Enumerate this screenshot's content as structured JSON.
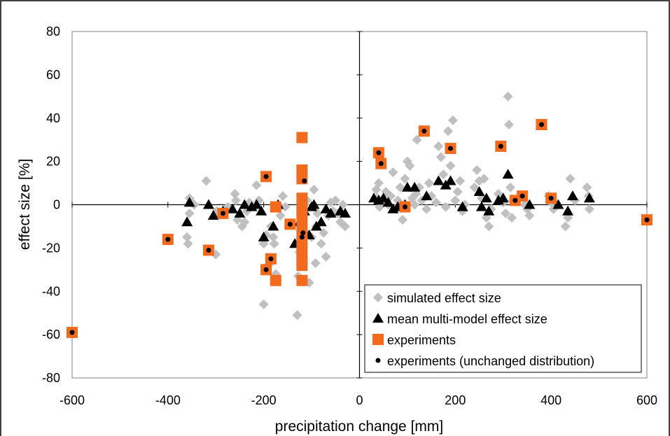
{
  "chart_data": {
    "type": "scatter",
    "xlabel": "precipitation change [mm]",
    "ylabel": "effect size [%]",
    "xlim": [
      -600,
      600
    ],
    "ylim": [
      -80,
      80
    ],
    "x_ticks": [
      -600,
      -400,
      -200,
      0,
      200,
      400,
      600
    ],
    "y_ticks": [
      -80,
      -60,
      -40,
      -20,
      0,
      20,
      40,
      60,
      80
    ],
    "grid": false,
    "legend_position": "bottom-right",
    "colors": {
      "simulated": "#c0c0c0",
      "mean": "#000000",
      "experiments": "#f26b1d",
      "unchanged": "#000000"
    },
    "series": [
      {
        "name": "simulated effect size",
        "marker": "diamond",
        "points": [
          [
            -355,
            3
          ],
          [
            -355,
            -4
          ],
          [
            -360,
            -15
          ],
          [
            -358,
            -18
          ],
          [
            -350,
            1
          ],
          [
            -345,
            0
          ],
          [
            -320,
            11
          ],
          [
            -300,
            -23
          ],
          [
            -298,
            -3
          ],
          [
            -280,
            -2
          ],
          [
            -275,
            -1
          ],
          [
            -260,
            5
          ],
          [
            -258,
            2
          ],
          [
            -255,
            -7
          ],
          [
            -245,
            -10
          ],
          [
            -240,
            -8
          ],
          [
            -235,
            -3
          ],
          [
            -230,
            1
          ],
          [
            -215,
            9
          ],
          [
            -210,
            2
          ],
          [
            -200,
            -18
          ],
          [
            -200,
            -46
          ],
          [
            -195,
            -14
          ],
          [
            -190,
            -28
          ],
          [
            -185,
            -10
          ],
          [
            -180,
            -15
          ],
          [
            -178,
            -18
          ],
          [
            -175,
            -32
          ],
          [
            -170,
            0
          ],
          [
            -165,
            -5
          ],
          [
            -160,
            4
          ],
          [
            -155,
            -1
          ],
          [
            -130,
            -51
          ],
          [
            -128,
            -33
          ],
          [
            -125,
            -22
          ],
          [
            -120,
            -12
          ],
          [
            -118,
            -5
          ],
          [
            -115,
            0
          ],
          [
            -110,
            2
          ],
          [
            -105,
            -36
          ],
          [
            -100,
            -15
          ],
          [
            -95,
            7
          ],
          [
            -92,
            -27
          ],
          [
            -90,
            -10
          ],
          [
            -88,
            -4
          ],
          [
            -80,
            -18
          ],
          [
            -75,
            -13
          ],
          [
            -70,
            -24
          ],
          [
            -65,
            -5
          ],
          [
            -60,
            1
          ],
          [
            -55,
            -3
          ],
          [
            -50,
            2
          ],
          [
            -45,
            -4
          ],
          [
            -40,
            -8
          ],
          [
            -35,
            0
          ],
          [
            -30,
            -10
          ],
          [
            35,
            7
          ],
          [
            38,
            3
          ],
          [
            40,
            10
          ],
          [
            42,
            -1
          ],
          [
            45,
            2
          ],
          [
            50,
            1
          ],
          [
            55,
            6
          ],
          [
            60,
            0
          ],
          [
            65,
            4
          ],
          [
            70,
            15
          ],
          [
            75,
            -2
          ],
          [
            80,
            2
          ],
          [
            85,
            8
          ],
          [
            90,
            -7
          ],
          [
            95,
            12
          ],
          [
            100,
            20
          ],
          [
            105,
            18
          ],
          [
            110,
            3
          ],
          [
            115,
            0
          ],
          [
            118,
            5
          ],
          [
            120,
            30
          ],
          [
            125,
            8
          ],
          [
            130,
            2
          ],
          [
            140,
            -2
          ],
          [
            145,
            10
          ],
          [
            150,
            4
          ],
          [
            160,
            1
          ],
          [
            165,
            27
          ],
          [
            170,
            22
          ],
          [
            175,
            14
          ],
          [
            180,
            -1
          ],
          [
            185,
            34
          ],
          [
            190,
            18
          ],
          [
            195,
            39
          ],
          [
            200,
            2
          ],
          [
            205,
            6
          ],
          [
            210,
            11
          ],
          [
            215,
            -3
          ],
          [
            220,
            0
          ],
          [
            240,
            8
          ],
          [
            245,
            16
          ],
          [
            250,
            11
          ],
          [
            255,
            3
          ],
          [
            260,
            12
          ],
          [
            265,
            -6
          ],
          [
            270,
            -10
          ],
          [
            275,
            -2
          ],
          [
            290,
            5
          ],
          [
            295,
            3
          ],
          [
            300,
            1
          ],
          [
            305,
            -4
          ],
          [
            310,
            50
          ],
          [
            312,
            37
          ],
          [
            315,
            8
          ],
          [
            318,
            -6
          ],
          [
            320,
            2
          ],
          [
            340,
            4
          ],
          [
            345,
            0
          ],
          [
            350,
            -2
          ],
          [
            355,
            -5
          ],
          [
            395,
            4
          ],
          [
            400,
            1
          ],
          [
            405,
            -2
          ],
          [
            430,
            -10
          ],
          [
            435,
            -6
          ],
          [
            440,
            12
          ],
          [
            445,
            3
          ],
          [
            450,
            2
          ],
          [
            475,
            8
          ],
          [
            478,
            4
          ],
          [
            480,
            -2
          ]
        ]
      },
      {
        "name": "mean multi-model effect size",
        "marker": "triangle",
        "points": [
          [
            -355,
            1
          ],
          [
            -360,
            -8
          ],
          [
            -315,
            0
          ],
          [
            -305,
            -5
          ],
          [
            -285,
            -3
          ],
          [
            -265,
            -2
          ],
          [
            -250,
            -4
          ],
          [
            -240,
            0
          ],
          [
            -225,
            -1
          ],
          [
            -215,
            0
          ],
          [
            -205,
            -3
          ],
          [
            -200,
            -15
          ],
          [
            -180,
            -10
          ],
          [
            -170,
            0
          ],
          [
            -135,
            -18
          ],
          [
            -125,
            -8
          ],
          [
            -115,
            -3
          ],
          [
            -105,
            -14
          ],
          [
            -100,
            -1
          ],
          [
            -95,
            0
          ],
          [
            -90,
            -10
          ],
          [
            -80,
            -8
          ],
          [
            -70,
            -2
          ],
          [
            -60,
            -4
          ],
          [
            -40,
            -3
          ],
          [
            -30,
            -4
          ],
          [
            30,
            3
          ],
          [
            40,
            2
          ],
          [
            50,
            3
          ],
          [
            60,
            1
          ],
          [
            70,
            -2
          ],
          [
            80,
            -1
          ],
          [
            95,
            0
          ],
          [
            100,
            8
          ],
          [
            115,
            8
          ],
          [
            140,
            4
          ],
          [
            165,
            11
          ],
          [
            180,
            9
          ],
          [
            190,
            11
          ],
          [
            215,
            -1
          ],
          [
            250,
            6
          ],
          [
            255,
            -1
          ],
          [
            265,
            3
          ],
          [
            270,
            -3
          ],
          [
            290,
            2
          ],
          [
            300,
            3
          ],
          [
            310,
            14
          ],
          [
            325,
            2
          ],
          [
            355,
            0
          ],
          [
            415,
            0
          ],
          [
            435,
            -3
          ],
          [
            445,
            4
          ],
          [
            480,
            3
          ]
        ]
      },
      {
        "name": "experiments",
        "marker": "square",
        "points": [
          [
            -600,
            -59
          ],
          [
            -400,
            -16
          ],
          [
            -315,
            -21
          ],
          [
            -285,
            -4
          ],
          [
            -195,
            13
          ],
          [
            -195,
            -30
          ],
          [
            -185,
            -25
          ],
          [
            -175,
            -35
          ],
          [
            -175,
            -1
          ],
          [
            -145,
            -9
          ],
          [
            -120,
            31
          ],
          [
            -120,
            16
          ],
          [
            -120,
            12
          ],
          [
            -120,
            3
          ],
          [
            -120,
            -2
          ],
          [
            -120,
            -5
          ],
          [
            -120,
            -10
          ],
          [
            -120,
            -14
          ],
          [
            -120,
            -18
          ],
          [
            -120,
            -22
          ],
          [
            -120,
            -26
          ],
          [
            -120,
            -28
          ],
          [
            -120,
            -35
          ],
          [
            40,
            24
          ],
          [
            45,
            19
          ],
          [
            95,
            -1
          ],
          [
            135,
            34
          ],
          [
            190,
            26
          ],
          [
            295,
            27
          ],
          [
            325,
            2
          ],
          [
            340,
            4
          ],
          [
            380,
            37
          ],
          [
            400,
            3
          ],
          [
            600,
            -7
          ]
        ]
      },
      {
        "name": "experiments (unchanged distribution)",
        "marker": "dot",
        "points": [
          [
            -600,
            -59
          ],
          [
            -400,
            -16
          ],
          [
            -315,
            -21
          ],
          [
            -285,
            -4
          ],
          [
            -195,
            13
          ],
          [
            -195,
            -30
          ],
          [
            -185,
            -25
          ],
          [
            -145,
            -9
          ],
          [
            -115,
            11
          ],
          [
            -118,
            -13
          ],
          [
            -120,
            -15
          ],
          [
            40,
            24
          ],
          [
            45,
            19
          ],
          [
            95,
            -1
          ],
          [
            135,
            34
          ],
          [
            190,
            26
          ],
          [
            295,
            27
          ],
          [
            325,
            2
          ],
          [
            340,
            4
          ],
          [
            380,
            37
          ],
          [
            400,
            3
          ],
          [
            600,
            -7
          ]
        ]
      }
    ]
  }
}
